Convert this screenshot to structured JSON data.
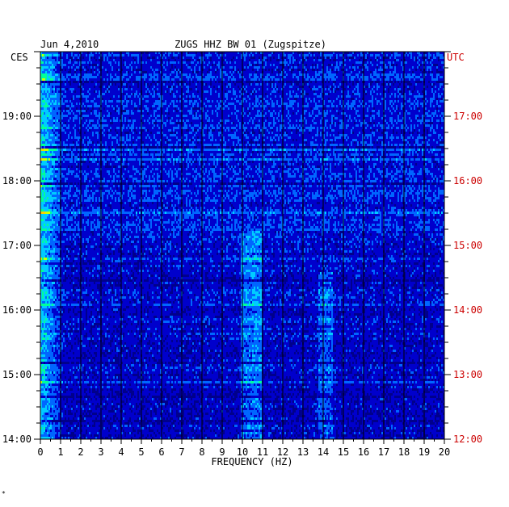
{
  "chart_data": {
    "type": "heatmap",
    "title_left": "Jun 4,2010",
    "title_center": "ZUGS HHZ BW 01 (Zugspitze)",
    "left_zone": "CES",
    "right_zone": "UTC",
    "xlabel": "FREQUENCY (HZ)",
    "xlim": [
      0,
      20
    ],
    "x_ticks": [
      "0",
      "1",
      "2",
      "3",
      "4",
      "5",
      "6",
      "7",
      "8",
      "9",
      "10",
      "11",
      "12",
      "13",
      "14",
      "15",
      "16",
      "17",
      "18",
      "19",
      "20"
    ],
    "left_time_labels": [
      {
        "label": "19:00",
        "hours_from_top": 1
      },
      {
        "label": "18:00",
        "hours_from_top": 2
      },
      {
        "label": "17:00",
        "hours_from_top": 3
      },
      {
        "label": "16:00",
        "hours_from_top": 4
      },
      {
        "label": "15:00",
        "hours_from_top": 5
      },
      {
        "label": "14:00",
        "hours_from_top": 6
      }
    ],
    "right_time_labels": [
      {
        "label": "17:00",
        "hours_from_top": 1
      },
      {
        "label": "16:00",
        "hours_from_top": 2
      },
      {
        "label": "15:00",
        "hours_from_top": 3
      },
      {
        "label": "14:00",
        "hours_from_top": 4
      },
      {
        "label": "13:00",
        "hours_from_top": 5
      },
      {
        "label": "12:00",
        "hours_from_top": 6
      }
    ],
    "time_span_hours": 6,
    "colormap": [
      "#00008b",
      "#0000ff",
      "#0066ff",
      "#00ccff",
      "#00ff99",
      "#ccff00",
      "#ffcc00",
      "#ff0000"
    ],
    "label_color_right": "#cc0000",
    "footer_mark": "*"
  }
}
